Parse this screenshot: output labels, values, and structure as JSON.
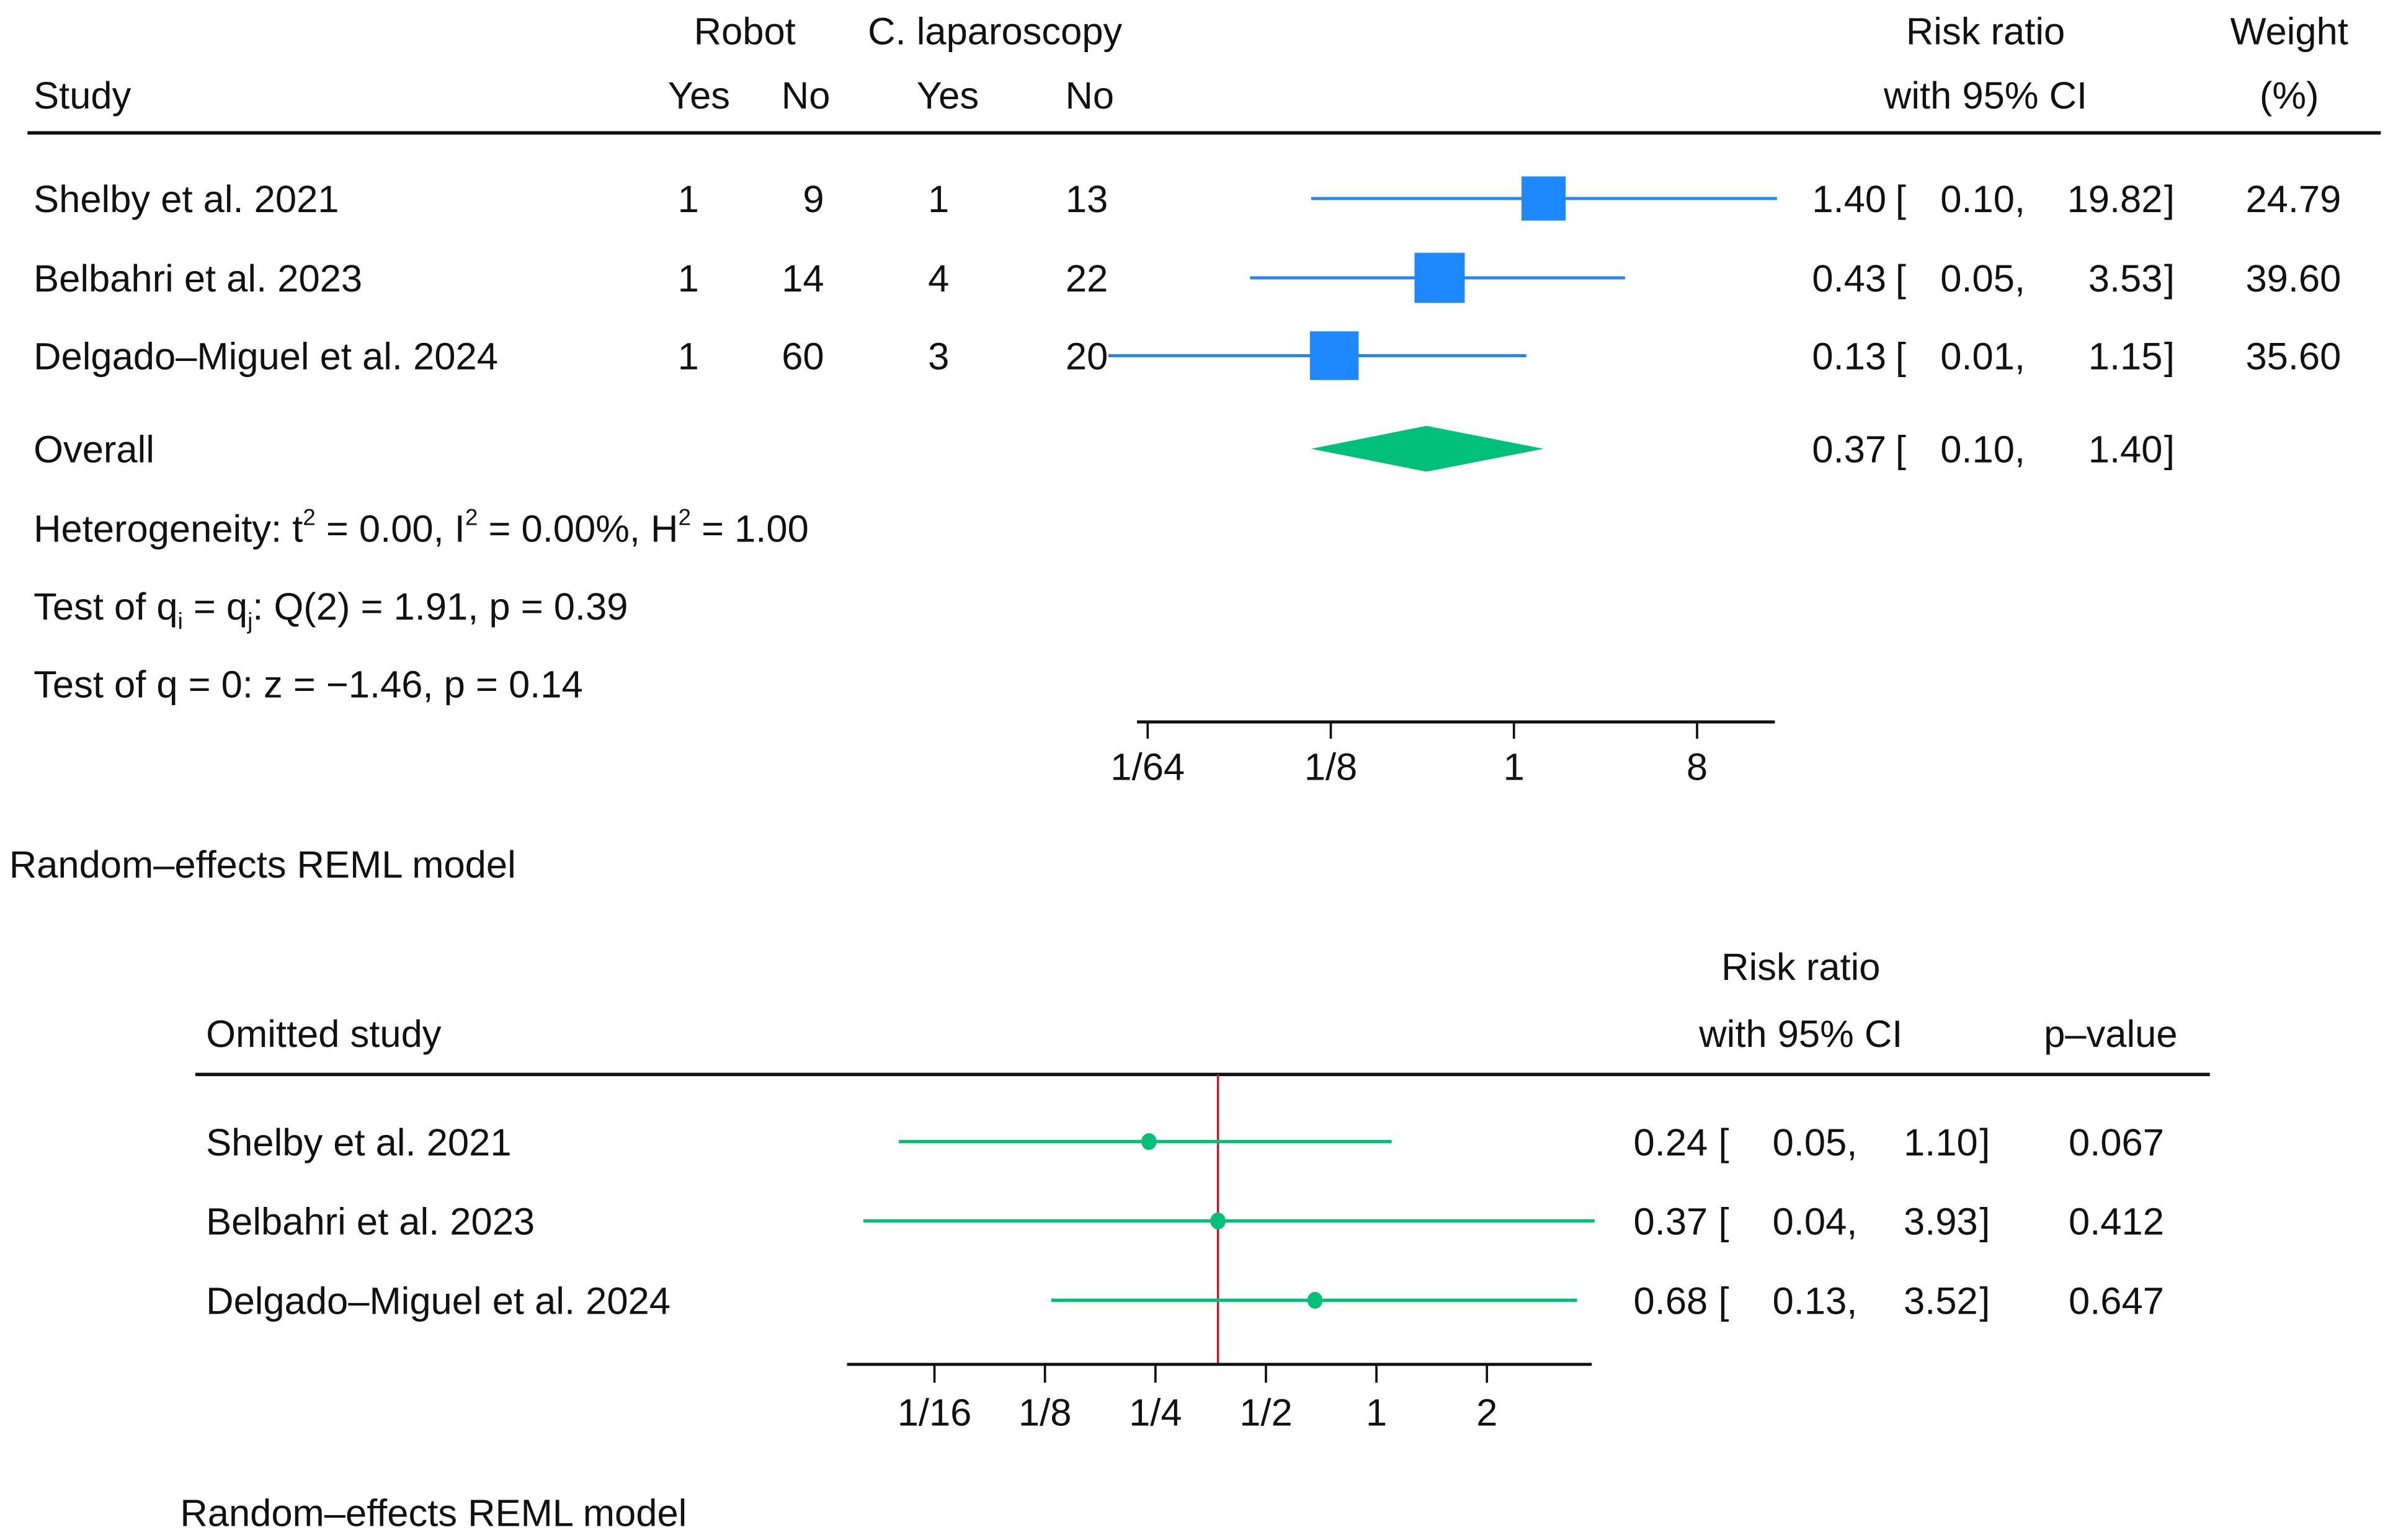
{
  "colors": {
    "study_marker": "#1e88ff",
    "overall_diamond": "#00c07a",
    "loo_marker": "#00c07a",
    "reference_line": "#c8102e",
    "axis": "#111111"
  },
  "chart_data": [
    {
      "type": "forest",
      "title": "",
      "headers": {
        "study": "Study",
        "group1": "Robot",
        "group2": "C. laparoscopy",
        "yes": "Yes",
        "no": "No",
        "effect_line1": "Risk ratio",
        "effect_line2": "with 95% CI",
        "weight_line1": "Weight",
        "weight_line2": "(%)"
      },
      "studies": [
        {
          "name": "Shelby et al. 2021",
          "g1_yes": "1",
          "g1_no": "9",
          "g2_yes": "1",
          "g2_no": "13",
          "rr": 1.4,
          "lo": 0.1,
          "hi": 19.82,
          "rr_text": "1.40",
          "lo_text": "0.10,",
          "hi_text": "19.82",
          "weight": 24.79,
          "weight_text": "24.79"
        },
        {
          "name": "Belbahri et al. 2023",
          "g1_yes": "1",
          "g1_no": "14",
          "g2_yes": "4",
          "g2_no": "22",
          "rr": 0.43,
          "lo": 0.05,
          "hi": 3.53,
          "rr_text": "0.43",
          "lo_text": "0.05,",
          "hi_text": "3.53",
          "weight": 39.6,
          "weight_text": "39.60"
        },
        {
          "name": "Delgado–Miguel et al. 2024",
          "g1_yes": "1",
          "g1_no": "60",
          "g2_yes": "3",
          "g2_no": "20",
          "rr": 0.13,
          "lo": 0.01,
          "hi": 1.15,
          "rr_text": "0.13",
          "lo_text": "0.01,",
          "hi_text": "1.15",
          "weight": 35.6,
          "weight_text": "35.60"
        }
      ],
      "overall": {
        "label": "Overall",
        "rr": 0.37,
        "lo": 0.1,
        "hi": 1.4,
        "rr_text": "0.37",
        "lo_text": "0.10,",
        "hi_text": "1.40"
      },
      "heterogeneity": {
        "prefix": "Heterogeneity: t",
        "t2": " = 0.00, I",
        "i2": " = 0.00%, H",
        "h2": " = 1.00",
        "sup": "2"
      },
      "test_q": {
        "a": "Test of q",
        "sub_i": "i",
        "b": " = q",
        "sub_j": "j",
        "c": ": Q(2) = 1.91, p = 0.39"
      },
      "test_zero": "Test of q = 0: z = −1.46, p = 0.14",
      "x_axis": {
        "scale": "log2",
        "ticks": [
          0.015625,
          0.125,
          1,
          8
        ],
        "tick_labels": [
          "1/64",
          "1/8",
          "1",
          "8"
        ],
        "range": [
          0.0125,
          20
        ]
      },
      "model_note": "Random–effects REML model"
    },
    {
      "type": "leave-one-out",
      "headers": {
        "study": "Omitted study",
        "effect_line1": "Risk ratio",
        "effect_line2": "with 95% CI",
        "pvalue": "p–value"
      },
      "studies": [
        {
          "name": "Shelby et al. 2021",
          "rr": 0.24,
          "lo": 0.05,
          "hi": 1.1,
          "rr_text": "0.24",
          "lo_text": "0.05,",
          "hi_text": "1.10",
          "p": "0.067"
        },
        {
          "name": "Belbahri et al. 2023",
          "rr": 0.37,
          "lo": 0.04,
          "hi": 3.93,
          "rr_text": "0.37",
          "lo_text": "0.04,",
          "hi_text": "3.93",
          "p": "0.412"
        },
        {
          "name": "Delgado–Miguel et al. 2024",
          "rr": 0.68,
          "lo": 0.13,
          "hi": 3.52,
          "rr_text": "0.68",
          "lo_text": "0.13,",
          "hi_text": "3.52",
          "p": "0.647"
        }
      ],
      "reference_rr": 0.37,
      "x_axis": {
        "scale": "log2",
        "ticks": [
          0.0625,
          0.125,
          0.25,
          0.5,
          1,
          2
        ],
        "tick_labels": [
          "1/16",
          "1/8",
          "1/4",
          "1/2",
          "1",
          "2"
        ],
        "range": [
          0.04,
          3.95
        ]
      },
      "model_note": "Random–effects REML model"
    }
  ]
}
